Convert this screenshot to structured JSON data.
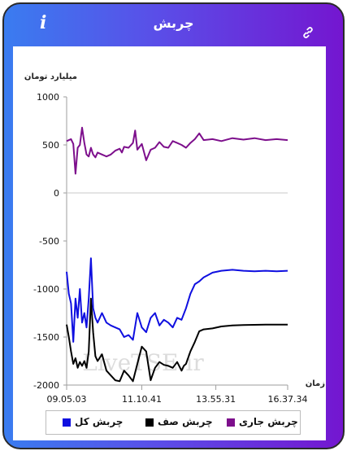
{
  "header": {
    "title": "چربش"
  },
  "chart_data": {
    "type": "line",
    "ylabel": "میلیارد تومان",
    "xlabel": "زمان",
    "ylim": [
      -2000,
      1000
    ],
    "yticks": [
      1000,
      500,
      0,
      -500,
      -1000,
      -1500,
      -2000
    ],
    "ytick_labels": [
      "1000",
      "500",
      "0",
      "-500",
      "-1000",
      "-1500",
      "-2000"
    ],
    "xlim": [
      0,
      100
    ],
    "xtick_positions": [
      0,
      34,
      67.5,
      100
    ],
    "xtick_labels": [
      "09.05.03",
      "11.10.41",
      "13.55.31",
      "16.37.34"
    ],
    "watermark": "LiveTSE.ir",
    "legend_position": "bottom",
    "series": [
      {
        "name": "چربش جاری",
        "color": "#7d0f8c",
        "x": [
          0,
          2,
          3,
          4,
          5,
          6,
          7,
          8,
          9,
          10,
          11,
          12,
          13,
          14,
          16,
          18,
          20,
          22,
          24,
          25,
          26,
          28,
          30,
          31,
          32,
          34,
          36,
          38,
          40,
          42,
          44,
          46,
          48,
          50,
          52,
          54,
          56,
          58,
          60,
          62,
          66,
          70,
          75,
          80,
          85,
          90,
          95,
          100
        ],
        "y": [
          540,
          560,
          510,
          200,
          470,
          500,
          680,
          520,
          400,
          380,
          470,
          400,
          370,
          420,
          400,
          380,
          400,
          440,
          460,
          420,
          480,
          470,
          520,
          650,
          450,
          510,
          340,
          450,
          470,
          530,
          480,
          470,
          540,
          520,
          500,
          470,
          520,
          560,
          620,
          550,
          560,
          540,
          570,
          555,
          570,
          550,
          560,
          550
        ]
      },
      {
        "name": "چربش صف",
        "color": "#000000",
        "x": [
          0,
          1,
          2,
          3,
          4,
          5,
          6,
          7,
          8,
          9,
          10,
          11,
          12,
          13,
          14,
          16,
          18,
          20,
          22,
          24,
          26,
          28,
          30,
          32,
          34,
          36,
          38,
          40,
          42,
          44,
          46,
          48,
          50,
          52,
          53,
          54,
          56,
          58,
          60,
          62,
          66,
          70,
          75,
          80,
          90,
          100
        ],
        "y": [
          -1370,
          -1500,
          -1650,
          -1780,
          -1720,
          -1820,
          -1760,
          -1800,
          -1750,
          -1820,
          -1650,
          -1100,
          -1450,
          -1700,
          -1750,
          -1680,
          -1850,
          -1900,
          -1950,
          -1960,
          -1850,
          -1900,
          -1960,
          -1780,
          -1600,
          -1650,
          -1950,
          -1820,
          -1760,
          -1790,
          -1800,
          -1820,
          -1760,
          -1850,
          -1800,
          -1780,
          -1650,
          -1550,
          -1440,
          -1420,
          -1410,
          -1390,
          -1380,
          -1375,
          -1370,
          -1370
        ]
      },
      {
        "name": "چربش کل",
        "color": "#0f0fe0",
        "x": [
          0,
          1,
          2,
          3,
          4,
          5,
          6,
          7,
          8,
          9,
          10,
          11,
          12,
          13,
          14,
          16,
          18,
          20,
          22,
          24,
          26,
          28,
          30,
          32,
          34,
          36,
          38,
          40,
          42,
          44,
          46,
          48,
          50,
          52,
          54,
          56,
          58,
          60,
          62,
          66,
          70,
          75,
          80,
          85,
          90,
          95,
          100
        ],
        "y": [
          -820,
          -1050,
          -1150,
          -1550,
          -1100,
          -1300,
          -1000,
          -1350,
          -1250,
          -1400,
          -1100,
          -680,
          -1200,
          -1300,
          -1350,
          -1250,
          -1350,
          -1380,
          -1400,
          -1420,
          -1500,
          -1480,
          -1530,
          -1250,
          -1400,
          -1450,
          -1300,
          -1250,
          -1380,
          -1320,
          -1350,
          -1400,
          -1300,
          -1320,
          -1200,
          -1050,
          -950,
          -920,
          -880,
          -830,
          -810,
          -800,
          -810,
          -815,
          -810,
          -815,
          -810
        ]
      }
    ]
  }
}
